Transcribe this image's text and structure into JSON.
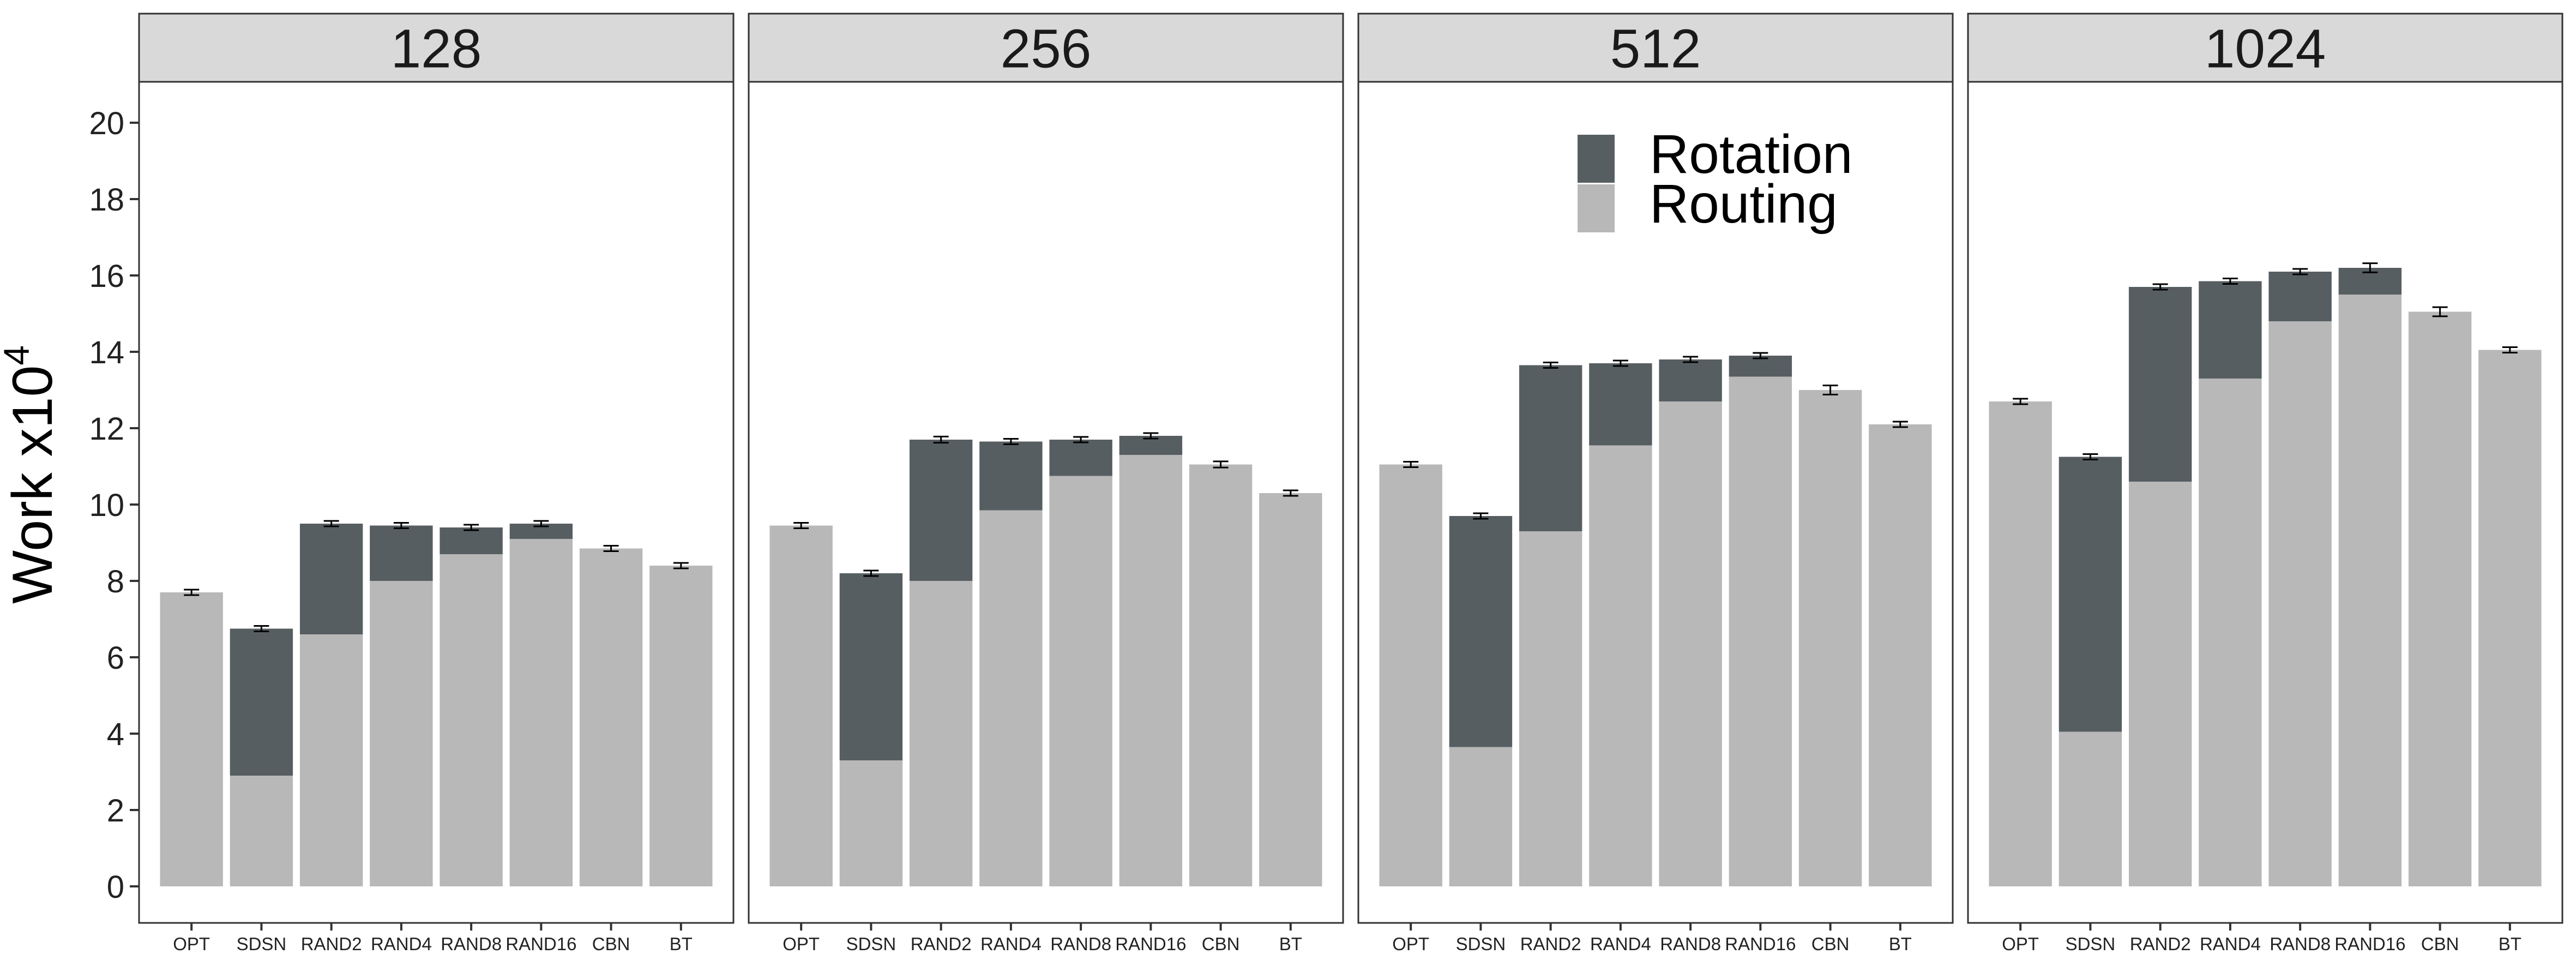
{
  "chart_data": {
    "type": "bar",
    "stacked": true,
    "ylabel": "Work x10",
    "ylabel_sup": "4",
    "ylim": [
      0,
      21
    ],
    "yticks": [
      0,
      2,
      4,
      6,
      8,
      10,
      12,
      14,
      16,
      18,
      20
    ],
    "categories": [
      "OPT",
      "SDSN",
      "RAND2",
      "RAND4",
      "RAND8",
      "RAND16",
      "CBN",
      "BT"
    ],
    "legend": {
      "position": "top-right of third panel",
      "entries": [
        {
          "name": "Rotation",
          "color": "#575E62"
        },
        {
          "name": "Routing",
          "color": "#B8B8B8"
        }
      ]
    },
    "colors": {
      "rotation": "#575E62",
      "routing": "#B8B8B8",
      "strip": "#D9D9D9"
    },
    "panels": [
      {
        "label": "128",
        "routing": [
          7.7,
          2.9,
          6.6,
          8.0,
          8.7,
          9.1,
          8.85,
          8.4
        ],
        "rotation": [
          0,
          3.85,
          2.9,
          1.45,
          0.7,
          0.4,
          0,
          0
        ],
        "error": [
          0.03,
          0.05,
          0.06,
          0.06,
          0.05,
          0.07,
          0.07,
          0.03
        ]
      },
      {
        "label": "256",
        "routing": [
          9.45,
          3.3,
          8.0,
          9.85,
          10.75,
          11.3,
          11.05,
          10.3
        ],
        "rotation": [
          0,
          4.9,
          3.7,
          1.8,
          0.95,
          0.5,
          0,
          0
        ],
        "error": [
          0.03,
          0.07,
          0.08,
          0.05,
          0.07,
          0.06,
          0.08,
          0.03
        ]
      },
      {
        "label": "512",
        "routing": [
          11.05,
          3.65,
          9.3,
          11.55,
          12.7,
          13.35,
          13.0,
          12.1
        ],
        "rotation": [
          0,
          6.05,
          4.35,
          2.15,
          1.1,
          0.55,
          0,
          0
        ],
        "error": [
          0.03,
          0.04,
          0.05,
          0.06,
          0.07,
          0.05,
          0.12,
          0.04
        ]
      },
      {
        "label": "1024",
        "routing": [
          12.7,
          4.05,
          10.6,
          13.3,
          14.8,
          15.5,
          15.05,
          14.05
        ],
        "rotation": [
          0,
          7.2,
          5.1,
          2.55,
          1.3,
          0.7,
          0,
          0
        ],
        "error": [
          0.04,
          0.04,
          0.06,
          0.07,
          0.07,
          0.12,
          0.12,
          0.03
        ]
      }
    ]
  }
}
